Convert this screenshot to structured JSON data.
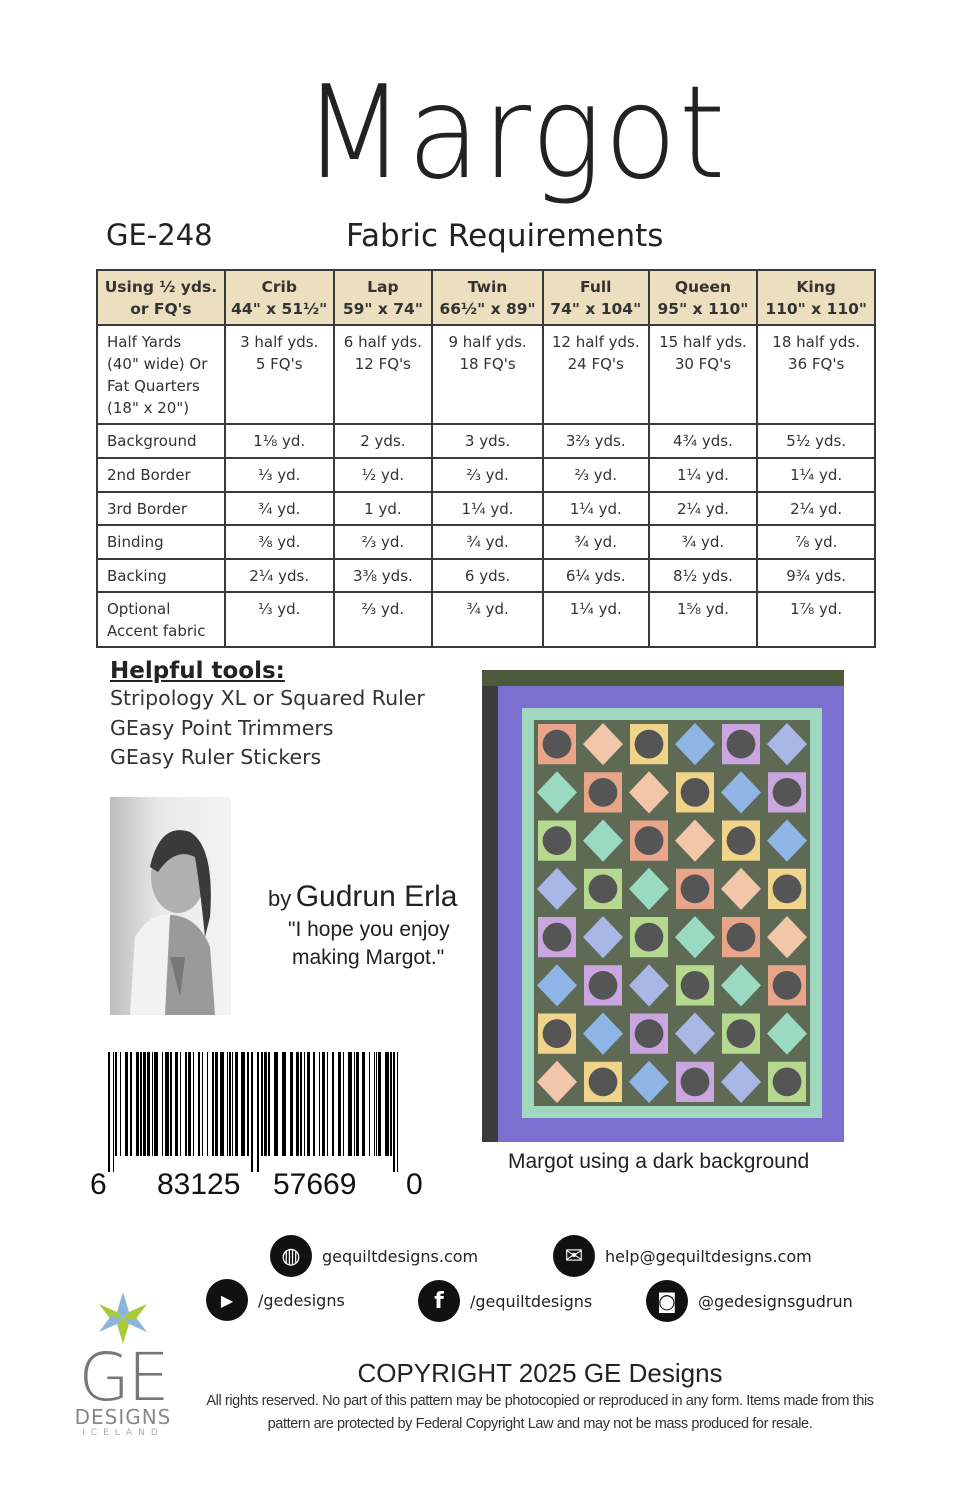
{
  "title": "Margot",
  "pattern_code": "GE-248",
  "subtitle": "Fabric Requirements",
  "table": {
    "headers": [
      {
        "line1": "Using ½ yds.",
        "line2": "or FQ's"
      },
      {
        "line1": "Crib",
        "line2": "44\" x 51½\""
      },
      {
        "line1": "Lap",
        "line2": "59\" x 74\""
      },
      {
        "line1": "Twin",
        "line2": "66½\" x 89\""
      },
      {
        "line1": "Full",
        "line2": "74\" x 104\""
      },
      {
        "line1": "Queen",
        "line2": "95\" x 110\""
      },
      {
        "line1": "King",
        "line2": "110\" x 110\""
      }
    ],
    "rows": [
      {
        "label": [
          "Half Yards",
          "(40\"  wide)  Or",
          "Fat Quarters",
          "(18\"  x 20\")"
        ],
        "cells": [
          [
            "3 half yds.",
            "5 FQ's"
          ],
          [
            "6 half yds.",
            "12 FQ's"
          ],
          [
            "9 half yds.",
            "18 FQ's"
          ],
          [
            "12 half yds.",
            "24 FQ's"
          ],
          [
            "15 half yds.",
            "30 FQ's"
          ],
          [
            "18 half yds.",
            "36 FQ's"
          ]
        ]
      },
      {
        "label": [
          "Background"
        ],
        "cells": [
          [
            "1⅛ yd."
          ],
          [
            "2 yds."
          ],
          [
            "3 yds."
          ],
          [
            "3⅔ yds."
          ],
          [
            "4¾ yds."
          ],
          [
            "5½ yds."
          ]
        ]
      },
      {
        "label": [
          "2nd Border"
        ],
        "cells": [
          [
            "⅓ yd."
          ],
          [
            "½ yd."
          ],
          [
            "⅔ yd."
          ],
          [
            "⅔ yd."
          ],
          [
            "1¼ yd."
          ],
          [
            "1¼ yd."
          ]
        ]
      },
      {
        "label": [
          "3rd Border"
        ],
        "cells": [
          [
            "¾ yd."
          ],
          [
            "1 yd."
          ],
          [
            "1¼ yd."
          ],
          [
            "1¼ yd."
          ],
          [
            "2¼ yd."
          ],
          [
            "2¼ yd."
          ]
        ]
      },
      {
        "label": [
          "Binding"
        ],
        "cells": [
          [
            "⅜ yd."
          ],
          [
            "⅔ yd."
          ],
          [
            "¾ yd."
          ],
          [
            "¾ yd."
          ],
          [
            "¾ yd."
          ],
          [
            "⅞ yd."
          ]
        ]
      },
      {
        "label": [
          "Backing"
        ],
        "cells": [
          [
            "2¼ yds."
          ],
          [
            "3⅜ yds."
          ],
          [
            "6 yds."
          ],
          [
            "6¼ yds."
          ],
          [
            "8½ yds."
          ],
          [
            "9¾ yds."
          ]
        ]
      },
      {
        "label": [
          "Optional",
          "Accent fabric"
        ],
        "cells": [
          [
            "⅓ yd."
          ],
          [
            "⅔ yd."
          ],
          [
            "¾ yd."
          ],
          [
            "1¼ yd."
          ],
          [
            "1⅝ yd."
          ],
          [
            "1⅞ yd."
          ]
        ]
      }
    ]
  },
  "tools": {
    "heading": "Helpful tools:",
    "items": [
      "Stripology XL or Squared Ruler",
      "GEasy Point Trimmers",
      "GEasy Ruler Stickers"
    ]
  },
  "author": {
    "by": "by",
    "name": "Gudrun Erla",
    "quote_line1": "\"I hope you enjoy",
    "quote_line2": "making Margot.\""
  },
  "barcode": {
    "digits": [
      "6",
      "83125",
      "57669",
      "0"
    ]
  },
  "photo_caption": "Margot using a dark background",
  "contacts": [
    {
      "icon": "globe-icon",
      "text": "gequiltdesigns.com"
    },
    {
      "icon": "envelope-icon",
      "text": "help@gequiltdesigns.com"
    },
    {
      "icon": "youtube-icon",
      "text": "/gedesigns"
    },
    {
      "icon": "facebook-icon",
      "text": "/gequiltdesigns"
    },
    {
      "icon": "instagram-icon",
      "text": "@gedesignsgudrun"
    }
  ],
  "logo": {
    "main": "GE",
    "sub": "DESIGNS",
    "country": "ICELAND"
  },
  "copyright": {
    "heading": "COPYRIGHT 2025  GE Designs",
    "line1": "All rights reserved. No part of this pattern may be photocopied or reproduced in any form. Items made from this",
    "line2": "pattern are protected by Federal Copyright Law and may not be mass produced for resale."
  },
  "colors": {
    "header_fill": "#ecdfc0",
    "quilt_border": "#7b6fd0",
    "quilt_inner_border": "#9fd8bf",
    "quilt_background": "#5f6a55"
  }
}
